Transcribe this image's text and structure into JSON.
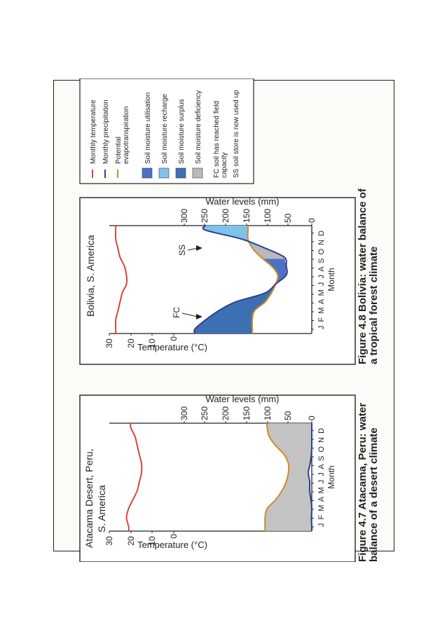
{
  "legend": {
    "items": [
      {
        "key": "temp",
        "label": "Monthly temperature",
        "kind": "line",
        "color": "#d9453a"
      },
      {
        "key": "precip",
        "label": "Monthly precipitation",
        "kind": "line",
        "color": "#2f3f8f"
      },
      {
        "key": "pet",
        "label": "Potential evapotranspiration",
        "kind": "line",
        "color": "#d08a2a",
        "lines": [
          "Potential",
          "evapotranspiration"
        ]
      },
      {
        "key": "util",
        "label": "Soil moisture utilisation",
        "kind": "swatch",
        "color": "#4c72c4"
      },
      {
        "key": "recharge",
        "label": "Soil moisture recharge",
        "kind": "swatch",
        "color": "#7ec3ea"
      },
      {
        "key": "surplus",
        "label": "Soil moisture surplus",
        "kind": "swatch",
        "color": "#3d6fb3"
      },
      {
        "key": "deficiency",
        "label": "Soil moisture deficiency",
        "kind": "swatch",
        "color": "#b9b9b9"
      },
      {
        "key": "fc",
        "label": "FC soil has reached field capacity",
        "kind": "note",
        "lines": [
          "FC soil has reached field",
          "capacity"
        ]
      },
      {
        "key": "ss",
        "label": "SS soil store is now used up",
        "kind": "note",
        "lines": [
          "SS soil store is now used up"
        ]
      }
    ]
  },
  "fig47": {
    "title_lines": [
      "Atacama Desert, Peru,",
      "S. America"
    ],
    "caption_lines": [
      "Figure 4.7  Atacama, Peru: water",
      "balance of a desert climate"
    ]
  },
  "fig48": {
    "title_lines": [
      "Bolivia, S. America"
    ],
    "caption_lines": [
      "Figure 4.8  Bolivia: water balance of",
      "a tropical forest climate"
    ],
    "annotations": {
      "fc": "FC",
      "ss": "SS"
    }
  },
  "axes": {
    "temp_label": "Temperature (°C)",
    "water_label": "Water levels (mm)",
    "month_label": "Month",
    "month_letters": "J F M A M J J A S O N D",
    "temp_ticks": [
      "30",
      "20",
      "10",
      "0"
    ],
    "water_ticks": [
      "300",
      "250",
      "200",
      "150",
      "100",
      "50",
      "0"
    ]
  },
  "chart_data": [
    {
      "type": "line",
      "title": "Atacama Desert, Peru, S. America",
      "xlabel": "Month",
      "categories": [
        "J",
        "F",
        "M",
        "A",
        "M",
        "J",
        "J",
        "A",
        "S",
        "O",
        "N",
        "D"
      ],
      "y_left": {
        "label": "Temperature (°C)",
        "range": [
          0,
          30
        ]
      },
      "y_right": {
        "label": "Water levels (mm)",
        "range": [
          0,
          300
        ]
      },
      "series": [
        {
          "name": "Monthly temperature",
          "axis": "left",
          "values": [
            21,
            22,
            21,
            19,
            17,
            16,
            15,
            15,
            16,
            17,
            18,
            20
          ]
        },
        {
          "name": "Monthly precipitation",
          "axis": "right",
          "values": [
            0,
            1,
            0,
            2,
            5,
            5,
            8,
            4,
            1,
            0,
            0,
            0
          ]
        },
        {
          "name": "Potential evapotranspiration",
          "axis": "right",
          "values": [
            110,
            110,
            105,
            85,
            70,
            60,
            55,
            55,
            65,
            85,
            100,
            105
          ]
        }
      ],
      "fills": [
        {
          "name": "Soil moisture deficiency",
          "between": [
            "Monthly precipitation",
            "Potential evapotranspiration"
          ]
        }
      ]
    },
    {
      "type": "line",
      "title": "Bolivia, S. America",
      "xlabel": "Month",
      "categories": [
        "J",
        "F",
        "M",
        "A",
        "M",
        "J",
        "J",
        "A",
        "S",
        "O",
        "N",
        "D"
      ],
      "y_left": {
        "label": "Temperature (°C)",
        "range": [
          0,
          30
        ]
      },
      "y_right": {
        "label": "Water levels (mm)",
        "range": [
          0,
          300
        ]
      },
      "series": [
        {
          "name": "Monthly temperature",
          "axis": "left",
          "values": [
            27,
            27,
            26,
            25,
            24,
            22,
            22,
            23,
            25,
            26,
            27,
            27
          ]
        },
        {
          "name": "Monthly precipitation",
          "axis": "right",
          "values": [
            275,
            250,
            220,
            180,
            110,
            85,
            60,
            60,
            65,
            110,
            165,
            250
          ]
        },
        {
          "name": "Potential evapotranspiration",
          "axis": "right",
          "values": [
            140,
            140,
            135,
            110,
            95,
            85,
            80,
            95,
            120,
            140,
            150,
            150
          ]
        }
      ],
      "fills": [
        {
          "name": "Soil moisture surplus",
          "months": [
            "J",
            "F",
            "M",
            "A",
            "M"
          ]
        },
        {
          "name": "Soil moisture utilisation",
          "months": [
            "J",
            "J",
            "A",
            "S",
            "O"
          ]
        },
        {
          "name": "Soil moisture deficiency",
          "months": [
            "S",
            "O"
          ]
        },
        {
          "name": "Soil moisture recharge",
          "months": [
            "N",
            "D"
          ]
        }
      ],
      "annotations": [
        {
          "text": "FC",
          "meaning": "soil has reached field capacity"
        },
        {
          "text": "SS",
          "meaning": "soil store is now used up"
        }
      ]
    }
  ]
}
